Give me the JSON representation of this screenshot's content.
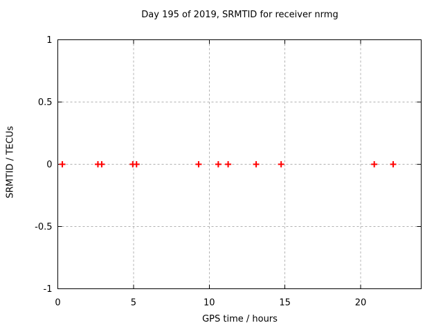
{
  "chart_data": {
    "type": "scatter",
    "title": "Day 195 of 2019, SRMTID for receiver nrmg",
    "xlabel": "GPS time / hours",
    "ylabel": "SRMTID / TECUs",
    "xlim": [
      0,
      24
    ],
    "ylim": [
      -1,
      1
    ],
    "xticks": [
      0,
      5,
      10,
      15,
      20
    ],
    "yticks": [
      -1,
      -0.5,
      0,
      0.5,
      1
    ],
    "grid": true,
    "grid_style": "dashed",
    "legend": "none",
    "colors": {
      "marker": "#ff0000",
      "grid": "#b0b0b0",
      "border": "#000000",
      "text": "#000000",
      "background": "#ffffff"
    },
    "series": [
      {
        "name": "SRMTID",
        "marker": "plus",
        "color": "#ff0000",
        "points": [
          [
            0.3,
            0
          ],
          [
            2.65,
            0
          ],
          [
            2.9,
            0
          ],
          [
            4.95,
            0
          ],
          [
            5.2,
            0
          ],
          [
            9.3,
            0
          ],
          [
            10.6,
            0
          ],
          [
            11.25,
            0
          ],
          [
            13.1,
            0
          ],
          [
            14.75,
            0
          ],
          [
            20.9,
            0
          ],
          [
            22.15,
            0
          ]
        ]
      }
    ]
  }
}
